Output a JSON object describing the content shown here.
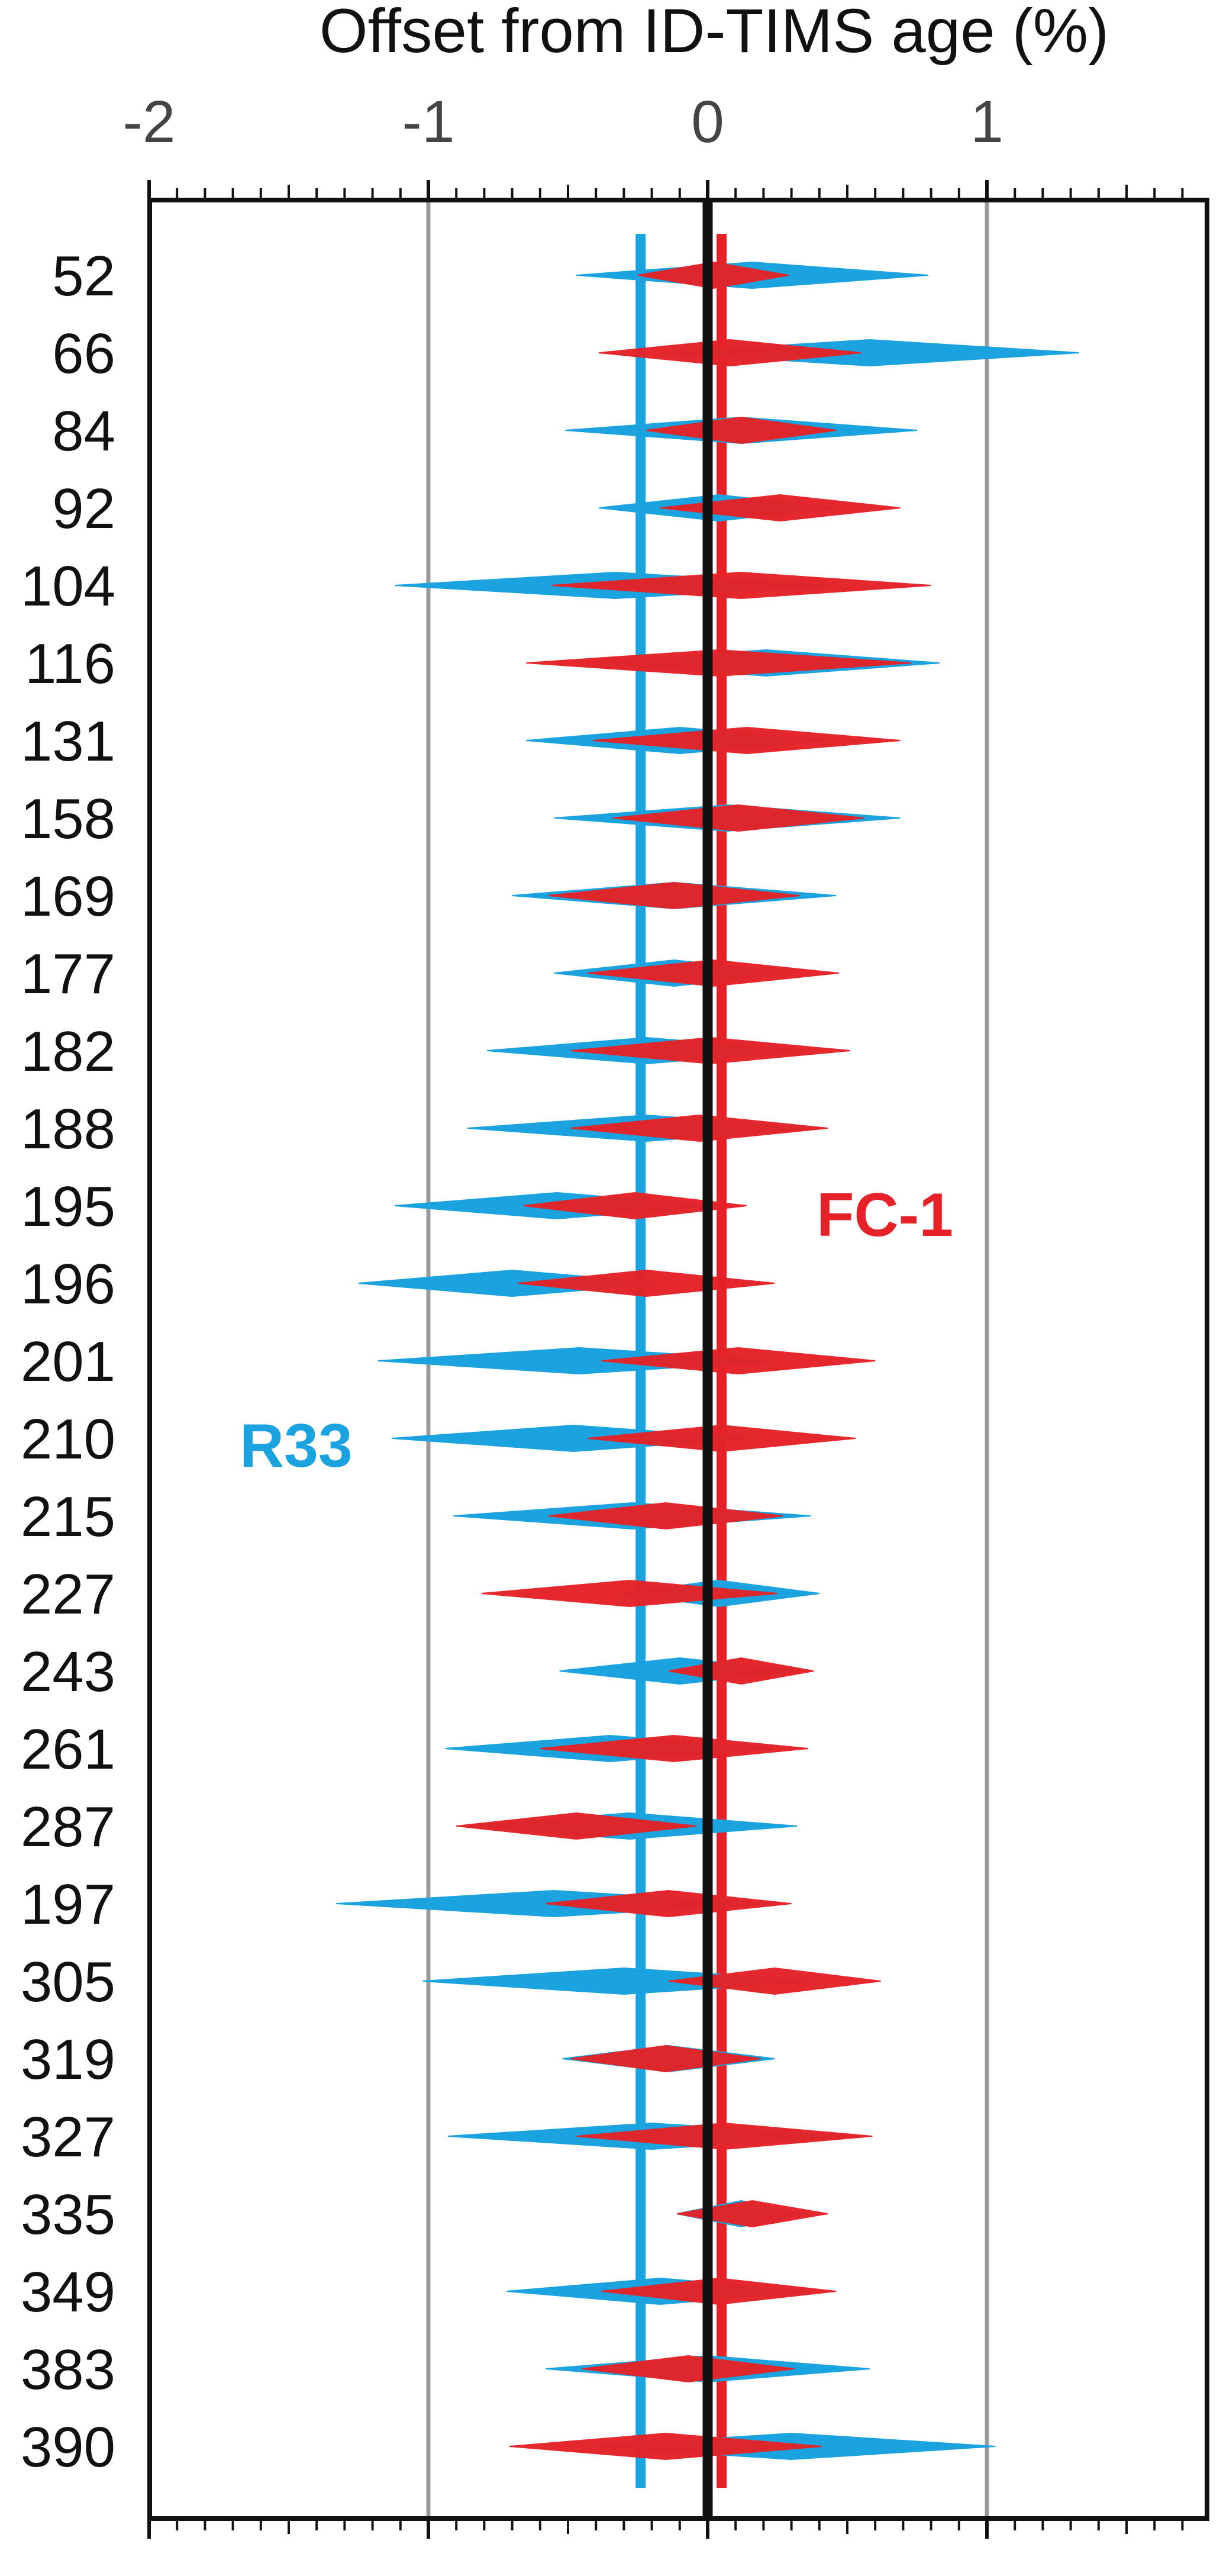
{
  "chart_data": {
    "type": "scatter",
    "title": "Offset from ID-TIMS age (%)",
    "xlim": [
      -2,
      2
    ],
    "x_ticks": [
      "-2",
      "-1",
      "0",
      "1"
    ],
    "x_gridlines": [
      -1,
      1
    ],
    "zero_line": 0,
    "categories": [
      "52",
      "66",
      "84",
      "92",
      "104",
      "116",
      "131",
      "158",
      "169",
      "177",
      "182",
      "188",
      "195",
      "196",
      "201",
      "210",
      "215",
      "227",
      "243",
      "261",
      "287",
      "197",
      "305",
      "319",
      "327",
      "335",
      "349",
      "383",
      "390"
    ],
    "series": [
      {
        "name": "R33",
        "color": "#1ba3e0",
        "mean_offset": -0.24,
        "center": [
          0.16,
          0.58,
          0.12,
          0.04,
          -0.33,
          0.21,
          -0.1,
          0.07,
          -0.12,
          -0.12,
          -0.22,
          -0.22,
          -0.54,
          -0.7,
          -0.46,
          -0.48,
          -0.27,
          0.04,
          -0.1,
          -0.35,
          -0.28,
          -0.55,
          -0.3,
          -0.14,
          -0.2,
          0.12,
          -0.17,
          0.0,
          0.3
        ],
        "half_width": [
          0.63,
          0.75,
          0.63,
          0.43,
          0.79,
          0.62,
          0.55,
          0.62,
          0.58,
          0.43,
          0.57,
          0.64,
          0.58,
          0.55,
          0.72,
          0.65,
          0.64,
          0.36,
          0.43,
          0.59,
          0.6,
          0.78,
          0.72,
          0.38,
          0.73,
          0.23,
          0.55,
          0.58,
          0.73
        ]
      },
      {
        "name": "FC-1",
        "color": "#e52228",
        "mean_offset": 0.05,
        "center": [
          0.02,
          0.08,
          0.12,
          0.26,
          0.12,
          0.04,
          0.14,
          0.11,
          -0.12,
          0.02,
          0.01,
          -0.03,
          -0.26,
          -0.22,
          0.11,
          0.05,
          -0.15,
          -0.28,
          0.12,
          -0.12,
          -0.47,
          -0.14,
          0.24,
          -0.15,
          0.06,
          0.16,
          0.04,
          -0.07,
          -0.15
        ],
        "half_width": [
          0.27,
          0.47,
          0.34,
          0.43,
          0.68,
          0.69,
          0.55,
          0.45,
          0.45,
          0.45,
          0.5,
          0.46,
          0.4,
          0.46,
          0.49,
          0.48,
          0.42,
          0.53,
          0.26,
          0.48,
          0.43,
          0.44,
          0.38,
          0.34,
          0.53,
          0.27,
          0.42,
          0.38,
          0.56
        ]
      }
    ],
    "annotations": [
      {
        "text": "R33",
        "color": "#1ba3e0"
      },
      {
        "text": "FC-1",
        "color": "#e52228"
      }
    ]
  }
}
